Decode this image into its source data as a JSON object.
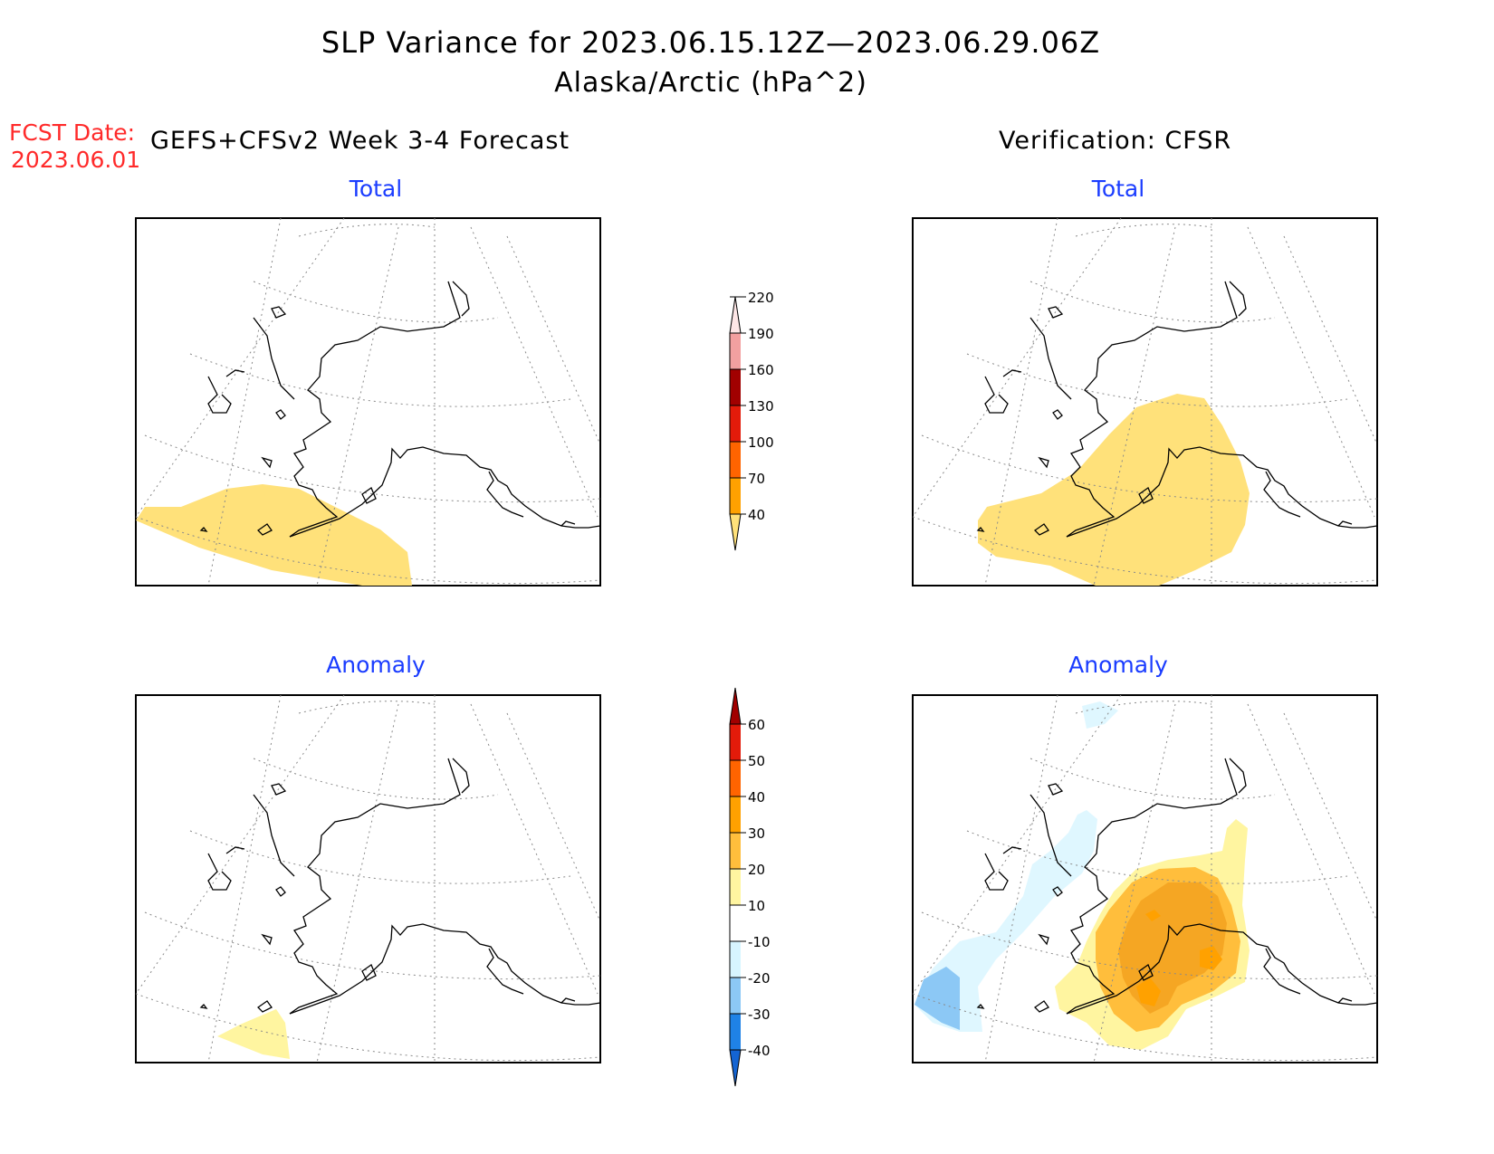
{
  "title": "SLP Variance for 2023.06.15.12Z—2023.06.29.06Z",
  "subtitle": "Alaska/Arctic (hPa^2)",
  "forecast_date_label": "FCST Date:",
  "forecast_date": "2023.06.01",
  "forecast_heading": "GEFS+CFSv2 Week 3-4 Forecast",
  "verification_heading": "Verification: CFSR",
  "panels": [
    {
      "id": "fcst-total",
      "title": "Total"
    },
    {
      "id": "verif-total",
      "title": "Total"
    },
    {
      "id": "fcst-anomaly",
      "title": "Anomaly"
    },
    {
      "id": "verif-anomaly",
      "title": "Anomaly"
    }
  ],
  "colorbars": {
    "total": {
      "labels": [
        "40",
        "70",
        "100",
        "130",
        "160",
        "190",
        "220"
      ],
      "colors": [
        "#ffe17a",
        "#ffa100",
        "#ff6400",
        "#e31b0a",
        "#a10000",
        "#f2a0a0",
        "#fde6e6"
      ]
    },
    "anomaly": {
      "labels": [
        "-40",
        "-30",
        "-20",
        "-10",
        "10",
        "20",
        "30",
        "40",
        "50",
        "60"
      ],
      "colors": [
        "#1464d2",
        "#1f82e6",
        "#8cc8f5",
        "#d7f5ff",
        "#ffffff",
        "#fff5a0",
        "#ffbe3c",
        "#ffa100",
        "#ff6400",
        "#e31b0a",
        "#a10000"
      ]
    }
  },
  "shading_colors": {
    "total_40_70": "#ffe17a",
    "anom_10_20": "#fff5a0",
    "anom_20_30": "#ffbe3c",
    "anom_30_40": "#f5a623",
    "anom_neg_10_20": "#dff7ff",
    "anom_neg_20_30": "#8cc8f5"
  }
}
